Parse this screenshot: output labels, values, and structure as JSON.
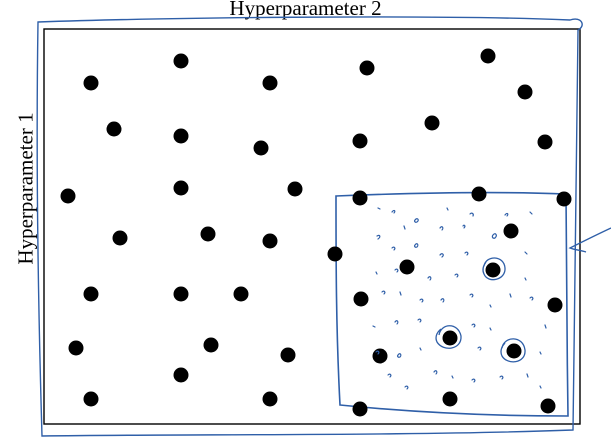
{
  "diagram": {
    "x_axis_label": "Hyperparameter 2",
    "y_axis_label": "Hyperparameter 1",
    "colors": {
      "point": "#000000",
      "frame": "#000000",
      "annotation": "#2f5fa8"
    }
  }
}
